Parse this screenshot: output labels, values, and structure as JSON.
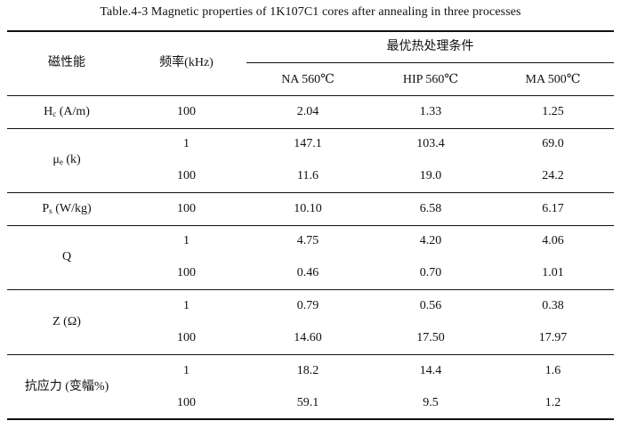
{
  "caption": "Table.4-3 Magnetic properties of 1K107C1 cores after annealing in three processes",
  "header": {
    "property": "磁性能",
    "frequency": "频率(kHz)",
    "group": "最优热处理条件",
    "cols": [
      "NA 560℃",
      "HIP 560℃",
      "MA 500℃"
    ]
  },
  "rows": [
    {
      "label": {
        "main": "H",
        "sub": "c",
        "rest": " (A/m)"
      },
      "entries": [
        {
          "freq": "100",
          "values": [
            "2.04",
            "1.33",
            "1.25"
          ]
        }
      ]
    },
    {
      "label": {
        "main": "μ",
        "sub": "e",
        "rest": " (k)"
      },
      "entries": [
        {
          "freq": "1",
          "values": [
            "147.1",
            "103.4",
            "69.0"
          ]
        },
        {
          "freq": "100",
          "values": [
            "11.6",
            "19.0",
            "24.2"
          ]
        }
      ]
    },
    {
      "label": {
        "main": "P",
        "sub": "s",
        "rest": " (W/kg)"
      },
      "entries": [
        {
          "freq": "100",
          "values": [
            "10.10",
            "6.58",
            "6.17"
          ]
        }
      ]
    },
    {
      "label": {
        "main": "Q",
        "sub": "",
        "rest": ""
      },
      "entries": [
        {
          "freq": "1",
          "values": [
            "4.75",
            "4.20",
            "4.06"
          ]
        },
        {
          "freq": "100",
          "values": [
            "0.46",
            "0.70",
            "1.01"
          ]
        }
      ]
    },
    {
      "label": {
        "main": "Z (Ω)",
        "sub": "",
        "rest": ""
      },
      "entries": [
        {
          "freq": "1",
          "values": [
            "0.79",
            "0.56",
            "0.38"
          ]
        },
        {
          "freq": "100",
          "values": [
            "14.60",
            "17.50",
            "17.97"
          ]
        }
      ]
    },
    {
      "label": {
        "main": "抗应力 (变幅%)",
        "sub": "",
        "rest": ""
      },
      "entries": [
        {
          "freq": "1",
          "values": [
            "18.2",
            "14.4",
            "1.6"
          ]
        },
        {
          "freq": "100",
          "values": [
            "59.1",
            "9.5",
            "1.2"
          ]
        }
      ]
    }
  ]
}
